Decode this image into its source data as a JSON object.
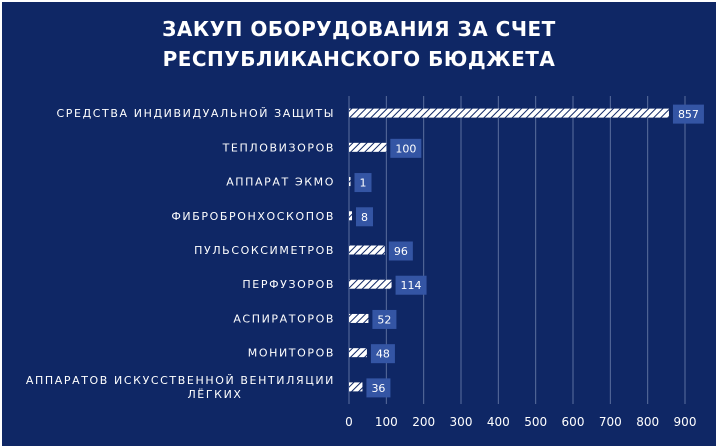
{
  "colors": {
    "background": "#0f2765",
    "bar_fill": "#ffffff",
    "bar_hatch": "#0f2765",
    "data_label_box": "#3455a4",
    "gridline": "#5b6f9e",
    "text": "#ffffff"
  },
  "chart_data": {
    "type": "bar",
    "orientation": "horizontal",
    "title_lines": [
      "ЗАКУП ОБОРУДОВАНИЯ ЗА СЧЕТ",
      "РЕСПУБЛИКАНСКОГО БЮДЖЕТА"
    ],
    "categories": [
      [
        "СРЕДСТВА ИНДИВИДУАЛЬНОЙ ЗАЩИТЫ"
      ],
      [
        "ТЕПЛОВИЗОРОВ"
      ],
      [
        "АППАРАТ ЭКМО"
      ],
      [
        "ФИБРОБРОНХОСКОПОВ"
      ],
      [
        "ПУЛЬСОКСИМЕТРОВ"
      ],
      [
        "ПЕРФУЗОРОВ"
      ],
      [
        "АСПИРАТОРОВ"
      ],
      [
        "МОНИТОРОВ"
      ],
      [
        "АППАРАТОВ ИСКУССТВЕННОЙ ВЕНТИЛЯЦИИ",
        "ЛЁГКИХ"
      ]
    ],
    "values": [
      857,
      100,
      1,
      8,
      96,
      114,
      52,
      48,
      36
    ],
    "xlim": [
      0,
      900
    ],
    "xticks": [
      0,
      100,
      200,
      300,
      400,
      500,
      600,
      700,
      800,
      900
    ],
    "grid": "vertical",
    "legend": "none",
    "data_labels": true
  }
}
